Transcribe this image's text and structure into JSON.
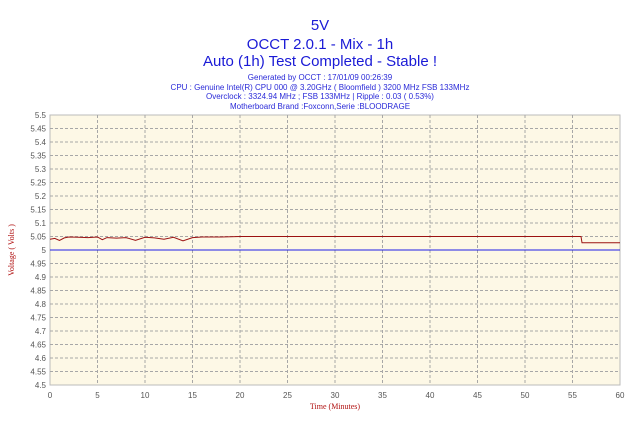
{
  "header": {
    "title": "5V",
    "subtitle1": "OCCT 2.0.1 - Mix - 1h",
    "subtitle2": "Auto (1h) Test Completed - Stable !",
    "generated": "Generated by OCCT : 17/01/09 00:26:39",
    "cpu": "CPU : Genuine Intel(R) CPU 000 @ 3.20GHz ( Bloomfield ) 3200 MHz FSB 133MHz",
    "overclock": "Overclock : 3324.94 MHz ; FSB 133MHz | Ripple : 0.03 ( 0.53%)",
    "motherboard": "Motherboard Brand :Foxconn,Serie :BLOODRAGE"
  },
  "colors": {
    "plot_bg": "#fdf8e6",
    "grid": "#a7a7a7",
    "series": "#9c1212",
    "reference": "#1e1ee6",
    "title": "#1a1ad6",
    "axis_label": "#b01010"
  },
  "chart_data": {
    "type": "line",
    "xlabel": "Time (Minutes)",
    "ylabel": "Voltage ( Volts )",
    "xlim": [
      0,
      60
    ],
    "ylim": [
      4.5,
      5.5
    ],
    "x_ticks": [
      "0",
      "5",
      "10",
      "15",
      "20",
      "25",
      "30",
      "35",
      "40",
      "45",
      "50",
      "55",
      "60"
    ],
    "y_ticks": [
      "4.5",
      "4.55",
      "4.6",
      "4.65",
      "4.7",
      "4.75",
      "4.8",
      "4.85",
      "4.9",
      "4.95",
      "5",
      "5.05",
      "5.1",
      "5.15",
      "5.2",
      "5.25",
      "5.3",
      "5.35",
      "5.4",
      "5.45",
      "5.5"
    ],
    "grid": true,
    "series": [
      {
        "x": [
          0,
          0.5,
          1,
          1.5,
          2,
          3,
          4,
          5,
          5.5,
          6,
          7,
          8,
          9,
          10,
          11,
          12,
          13,
          14,
          15,
          16,
          18,
          20,
          25,
          30,
          35,
          40,
          45,
          50,
          55,
          55.9,
          56,
          60
        ],
        "y": [
          5.04,
          5.043,
          5.035,
          5.045,
          5.048,
          5.047,
          5.046,
          5.048,
          5.038,
          5.046,
          5.044,
          5.046,
          5.036,
          5.047,
          5.045,
          5.04,
          5.047,
          5.034,
          5.046,
          5.048,
          5.048,
          5.05,
          5.05,
          5.05,
          5.05,
          5.05,
          5.05,
          5.05,
          5.05,
          5.05,
          5.027,
          5.027
        ]
      },
      {
        "x": [
          0,
          60
        ],
        "y": [
          5.0,
          5.0
        ]
      }
    ]
  }
}
